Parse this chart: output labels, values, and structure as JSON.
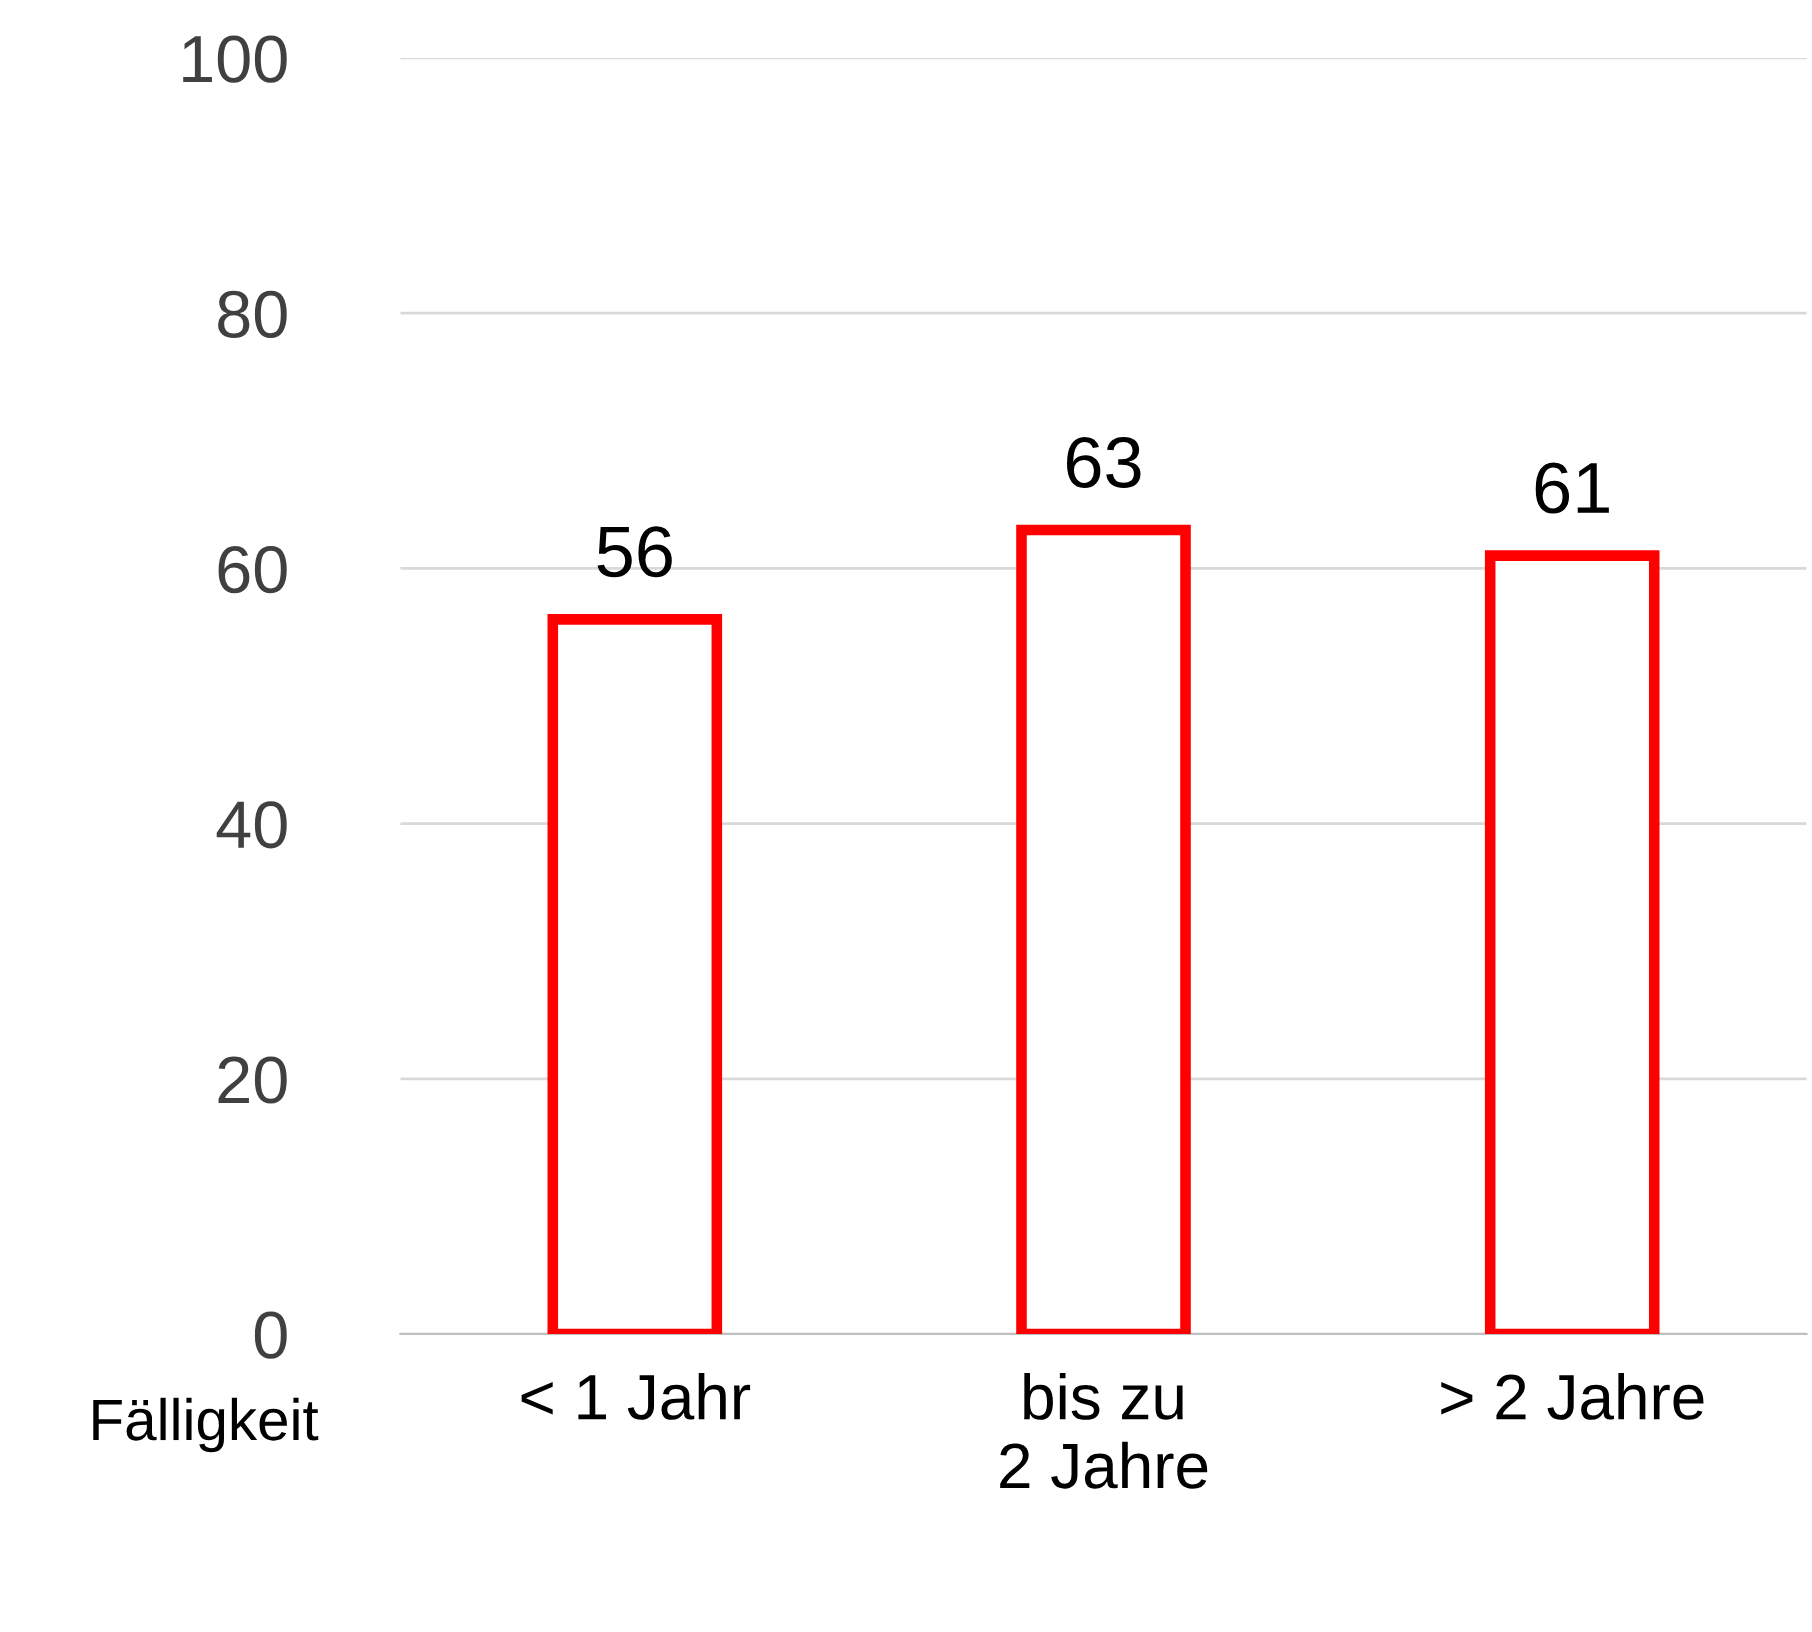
{
  "chart_data": {
    "type": "bar",
    "xlabel": "Fälligkeit",
    "categories": [
      "< 1 Jahr",
      "bis zu\n2 Jahre",
      "> 2 Jahre"
    ],
    "values": [
      56,
      63,
      61
    ],
    "color": "#ff0000",
    "ylim": [
      0,
      100
    ],
    "yticks": [
      0,
      20,
      40,
      60,
      80,
      100
    ],
    "grid": "y",
    "data_labels": true
  }
}
